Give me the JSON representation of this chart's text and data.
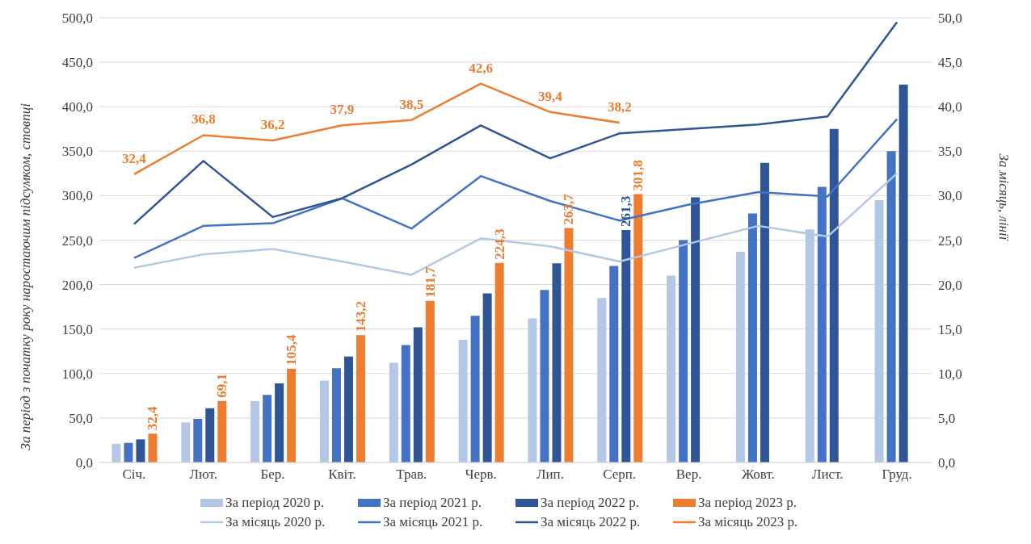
{
  "chart_data": {
    "type": "bar",
    "ylabel": "За період з початку року наростаючим підсумком, стовпці",
    "y2label": "За місяць, лінії",
    "categories": [
      "Січ.",
      "Лют.",
      "Бер.",
      "Квіт.",
      "Трав.",
      "Черв.",
      "Лип.",
      "Серп.",
      "Вер.",
      "Жовт.",
      "Лист.",
      "Груд."
    ],
    "series": [
      {
        "name": "За період 2020 р.",
        "color": "#b4c7e7",
        "values": [
          21,
          45,
          69,
          92,
          112,
          138,
          162,
          185,
          210,
          237,
          262,
          295
        ]
      },
      {
        "name": "За період 2021 р.",
        "color": "#4472c4",
        "values": [
          22,
          49,
          76,
          106,
          132,
          165,
          194,
          221,
          250,
          280,
          310,
          350
        ]
      },
      {
        "name": "За період 2022 р.",
        "color": "#2f5597",
        "values": [
          26,
          61,
          89,
          119,
          152,
          190,
          224,
          261.3,
          298,
          337,
          375,
          425
        ],
        "value_labels": [
          null,
          null,
          null,
          null,
          null,
          null,
          null,
          "261,3",
          null,
          null,
          null,
          null
        ]
      },
      {
        "name": "За період 2023 р.",
        "color": "#ed7d31",
        "values": [
          32.4,
          69.1,
          105.4,
          143.2,
          181.7,
          224.3,
          263.7,
          301.8,
          null,
          null,
          null,
          null
        ],
        "value_labels": [
          "32,4",
          "69,1",
          "105,4",
          "143,2",
          "181,7",
          "224,3",
          "263,7",
          "301,8",
          null,
          null,
          null,
          null
        ]
      },
      {
        "name": "За місяць 2020 р.",
        "type": "line",
        "axis": "y2",
        "color": "#b4c7e7",
        "values": [
          21.9,
          23.4,
          24.0,
          22.6,
          21.1,
          25.2,
          24.3,
          22.6,
          24.6,
          26.6,
          25.4,
          32.5
        ]
      },
      {
        "name": "За місяць 2021 р.",
        "type": "line",
        "axis": "y2",
        "color": "#4472c4",
        "values": [
          23.0,
          26.6,
          26.9,
          29.7,
          26.3,
          32.2,
          29.4,
          27.2,
          29.0,
          30.4,
          29.9,
          38.6
        ]
      },
      {
        "name": "За місяць 2022 р.",
        "type": "line",
        "axis": "y2",
        "color": "#2f5597",
        "values": [
          26.8,
          33.9,
          27.6,
          29.7,
          33.5,
          37.9,
          34.2,
          37.0,
          37.5,
          38.0,
          38.9,
          49.5
        ]
      },
      {
        "name": "За місяць 2023 р.",
        "type": "line",
        "axis": "y2",
        "color": "#ed7d31",
        "values": [
          32.4,
          36.8,
          36.2,
          37.9,
          38.5,
          42.6,
          39.4,
          38.2,
          null,
          null,
          null,
          null
        ],
        "value_labels": [
          "32,4",
          "36,8",
          "36,2",
          "37,9",
          "38,5",
          "42,6",
          "39,4",
          "38,2",
          null,
          null,
          null,
          null
        ]
      }
    ],
    "ylim": [
      0,
      500
    ],
    "yticks": [
      {
        "value": 0,
        "label": "0,0"
      },
      {
        "value": 50,
        "label": "50,0"
      },
      {
        "value": 100,
        "label": "100,0"
      },
      {
        "value": 150,
        "label": "150,0"
      },
      {
        "value": 200,
        "label": "200,0"
      },
      {
        "value": 250,
        "label": "250,0"
      },
      {
        "value": 300,
        "label": "300,0"
      },
      {
        "value": 350,
        "label": "350,0"
      },
      {
        "value": 400,
        "label": "400,0"
      },
      {
        "value": 450,
        "label": "450,0"
      },
      {
        "value": 500,
        "label": "500,0"
      }
    ],
    "y2lim": [
      0,
      50
    ],
    "y2ticks": [
      {
        "value": 0,
        "label": "0,0"
      },
      {
        "value": 5,
        "label": "5,0"
      },
      {
        "value": 10,
        "label": "10,0"
      },
      {
        "value": 15,
        "label": "15,0"
      },
      {
        "value": 20,
        "label": "20,0"
      },
      {
        "value": 25,
        "label": "25,0"
      },
      {
        "value": 30,
        "label": "30,0"
      },
      {
        "value": 35,
        "label": "35,0"
      },
      {
        "value": 40,
        "label": "40,0"
      },
      {
        "value": 45,
        "label": "45,0"
      },
      {
        "value": 50,
        "label": "50,0"
      }
    ],
    "grid": "y",
    "legend": "bottom",
    "marker": "none",
    "line_style": "solid"
  }
}
